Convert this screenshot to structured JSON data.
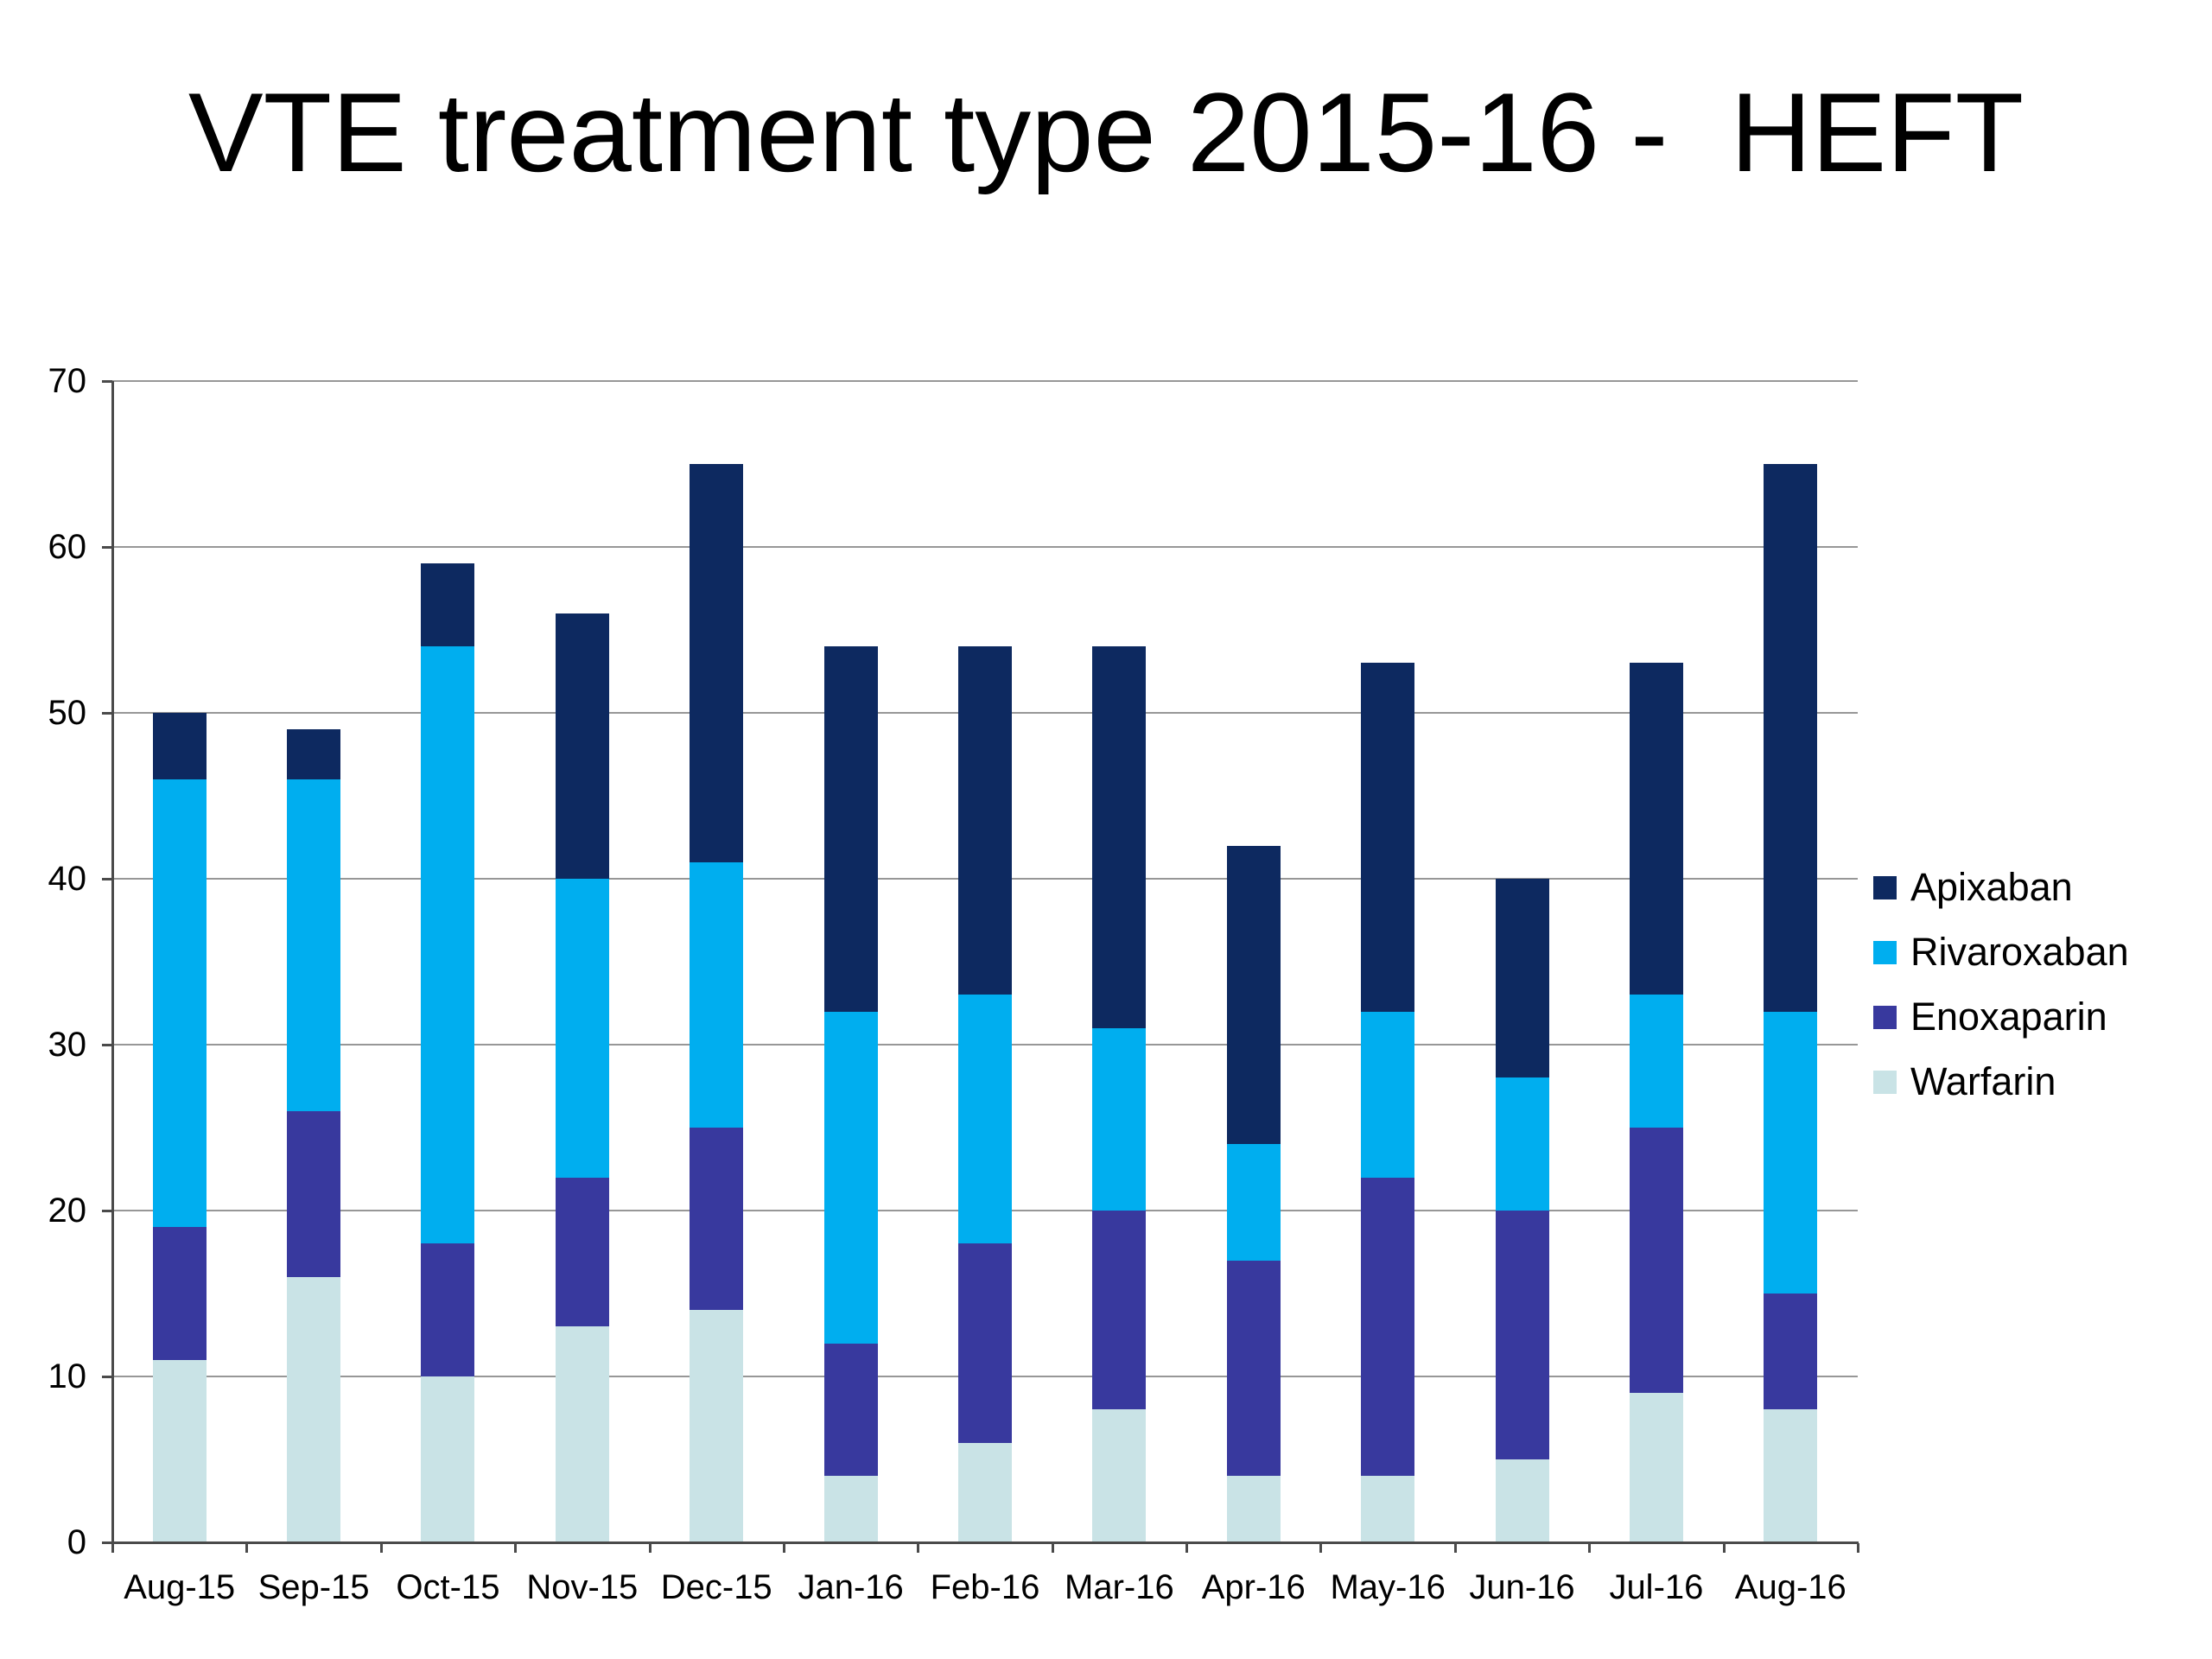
{
  "title": "VTE treatment type 2015-16 -  HEFT",
  "chart_data": {
    "type": "bar",
    "stacked": true,
    "title": "VTE treatment type 2015-16 -  HEFT",
    "categories": [
      "Aug-15",
      "Sep-15",
      "Oct-15",
      "Nov-15",
      "Dec-15",
      "Jan-16",
      "Feb-16",
      "Mar-16",
      "Apr-16",
      "May-16",
      "Jun-16",
      "Jul-16",
      "Aug-16"
    ],
    "series": [
      {
        "name": "Apixaban",
        "color": "#0d2960",
        "values": [
          4,
          3,
          5,
          16,
          24,
          22,
          21,
          23,
          18,
          21,
          12,
          20,
          33
        ]
      },
      {
        "name": "Rivaroxaban",
        "color": "#00aeef",
        "values": [
          27,
          20,
          36,
          18,
          16,
          20,
          15,
          11,
          7,
          10,
          8,
          8,
          17
        ]
      },
      {
        "name": "Enoxaparin",
        "color": "#38399e",
        "values": [
          8,
          10,
          8,
          9,
          11,
          8,
          12,
          12,
          13,
          18,
          15,
          16,
          7
        ]
      },
      {
        "name": "Warfarin",
        "color": "#c9e3e6",
        "values": [
          11,
          16,
          10,
          13,
          14,
          4,
          6,
          8,
          4,
          4,
          5,
          9,
          8
        ]
      }
    ],
    "bar_totals": [
      50,
      49,
      59,
      56,
      65,
      54,
      54,
      54,
      42,
      53,
      40,
      53,
      65
    ],
    "stack_order_bottom_to_top": [
      "Warfarin",
      "Enoxaparin",
      "Rivaroxaban",
      "Apixaban"
    ],
    "legend_order": [
      "Apixaban",
      "Rivaroxaban",
      "Enoxaparin",
      "Warfarin"
    ],
    "legend_position": "right",
    "xlabel": "",
    "ylabel": "",
    "ylim": [
      0,
      70
    ],
    "yticks": [
      0,
      10,
      20,
      30,
      40,
      50,
      60,
      70
    ],
    "grid": true,
    "gridline_color": "#979797",
    "axis_color": "#4a4a4a",
    "background_color": "#ffffff",
    "text_color": "#000000"
  }
}
